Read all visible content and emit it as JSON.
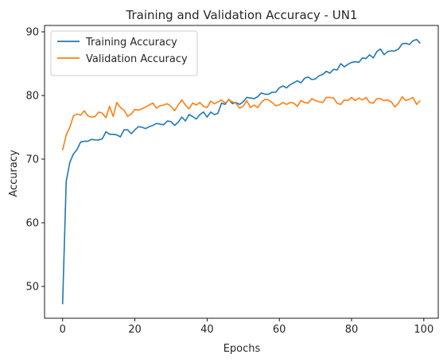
{
  "chart_data": {
    "type": "line",
    "title": "Training and Validation Accuracy - UN1",
    "xlabel": "Epochs",
    "ylabel": "Accuracy",
    "xlim": [
      -5,
      104
    ],
    "ylim": [
      45,
      91
    ],
    "xticks": [
      0,
      20,
      40,
      60,
      80,
      100
    ],
    "yticks": [
      50,
      60,
      70,
      80,
      90
    ],
    "grid": false,
    "legend_position": "top-left",
    "series": [
      {
        "name": "Training Accuracy",
        "color": "#1f77b4",
        "x": [
          0,
          1,
          2,
          3,
          4,
          5,
          6,
          7,
          8,
          9,
          10,
          11,
          12,
          13,
          14,
          15,
          16,
          17,
          18,
          19,
          20,
          21,
          22,
          23,
          24,
          25,
          26,
          27,
          28,
          29,
          30,
          31,
          32,
          33,
          34,
          35,
          36,
          37,
          38,
          39,
          40,
          41,
          42,
          43,
          44,
          45,
          46,
          47,
          48,
          49,
          50,
          51,
          52,
          53,
          54,
          55,
          56,
          57,
          58,
          59,
          60,
          61,
          62,
          63,
          64,
          65,
          66,
          67,
          68,
          69,
          70,
          71,
          72,
          73,
          74,
          75,
          76,
          77,
          78,
          79,
          80,
          81,
          82,
          83,
          84,
          85,
          86,
          87,
          88,
          89,
          90,
          91,
          92,
          93,
          94,
          95,
          96,
          97,
          98,
          99
        ],
        "values": [
          47.2,
          66.5,
          69.5,
          70.8,
          71.5,
          72.7,
          72.8,
          72.8,
          73.1,
          73.0,
          73.0,
          73.2,
          74.3,
          73.9,
          73.9,
          73.8,
          73.5,
          74.6,
          74.6,
          74.0,
          74.6,
          75.1,
          75.0,
          74.8,
          75.1,
          75.3,
          75.6,
          75.5,
          75.4,
          76.0,
          75.9,
          75.3,
          75.8,
          76.6,
          76.0,
          77.0,
          76.7,
          76.3,
          77.0,
          77.4,
          76.6,
          77.4,
          77.0,
          77.2,
          78.8,
          78.6,
          79.4,
          78.7,
          78.9,
          78.6,
          79.0,
          79.7,
          79.6,
          79.5,
          79.8,
          80.4,
          80.2,
          80.2,
          80.5,
          80.5,
          81.2,
          81.5,
          81.2,
          81.7,
          82.0,
          82.3,
          82.0,
          82.7,
          82.9,
          82.5,
          82.6,
          83.1,
          83.3,
          83.8,
          83.5,
          84.1,
          84.0,
          85.0,
          84.5,
          84.9,
          85.2,
          85.3,
          85.2,
          85.9,
          85.8,
          86.4,
          85.9,
          86.9,
          87.3,
          86.4,
          86.9,
          87.0,
          87.0,
          87.3,
          88.1,
          88.2,
          88.0,
          88.6,
          88.8,
          88.2
        ]
      },
      {
        "name": "Validation Accuracy",
        "color": "#ff7f0e",
        "x": [
          0,
          1,
          2,
          3,
          4,
          5,
          6,
          7,
          8,
          9,
          10,
          11,
          12,
          13,
          14,
          15,
          16,
          17,
          18,
          19,
          20,
          21,
          22,
          23,
          24,
          25,
          26,
          27,
          28,
          29,
          30,
          31,
          32,
          33,
          34,
          35,
          36,
          37,
          38,
          39,
          40,
          41,
          42,
          43,
          44,
          45,
          46,
          47,
          48,
          49,
          50,
          51,
          52,
          53,
          54,
          55,
          56,
          57,
          58,
          59,
          60,
          61,
          62,
          63,
          64,
          65,
          66,
          67,
          68,
          69,
          70,
          71,
          72,
          73,
          74,
          75,
          76,
          77,
          78,
          79,
          80,
          81,
          82,
          83,
          84,
          85,
          86,
          87,
          88,
          89,
          90,
          91,
          92,
          93,
          94,
          95,
          96,
          97,
          98,
          99
        ],
        "values": [
          71.4,
          73.8,
          75.0,
          76.8,
          77.1,
          76.9,
          77.6,
          76.8,
          76.6,
          76.7,
          77.4,
          77.2,
          76.5,
          78.3,
          76.7,
          78.9,
          78.1,
          77.7,
          76.7,
          77.1,
          77.8,
          77.7,
          77.9,
          78.2,
          78.5,
          78.8,
          78.0,
          78.4,
          78.5,
          78.7,
          78.3,
          77.6,
          78.5,
          79.3,
          78.5,
          77.9,
          78.8,
          78.5,
          78.9,
          78.3,
          78.1,
          79.1,
          78.7,
          79.0,
          79.3,
          78.8,
          79.3,
          79.0,
          78.8,
          78.0,
          78.3,
          79.2,
          78.1,
          78.5,
          78.1,
          78.9,
          79.4,
          79.3,
          78.9,
          78.4,
          78.5,
          78.9,
          78.6,
          78.9,
          78.8,
          78.3,
          79.2,
          78.9,
          78.8,
          79.5,
          79.2,
          79.0,
          78.9,
          79.7,
          79.7,
          79.6,
          78.8,
          78.6,
          79.3,
          79.2,
          79.7,
          79.2,
          79.6,
          79.3,
          79.7,
          78.9,
          78.8,
          79.5,
          79.5,
          79.2,
          79.3,
          79.0,
          78.2,
          78.8,
          79.8,
          79.2,
          79.4,
          79.7,
          78.6,
          79.2
        ]
      }
    ]
  }
}
